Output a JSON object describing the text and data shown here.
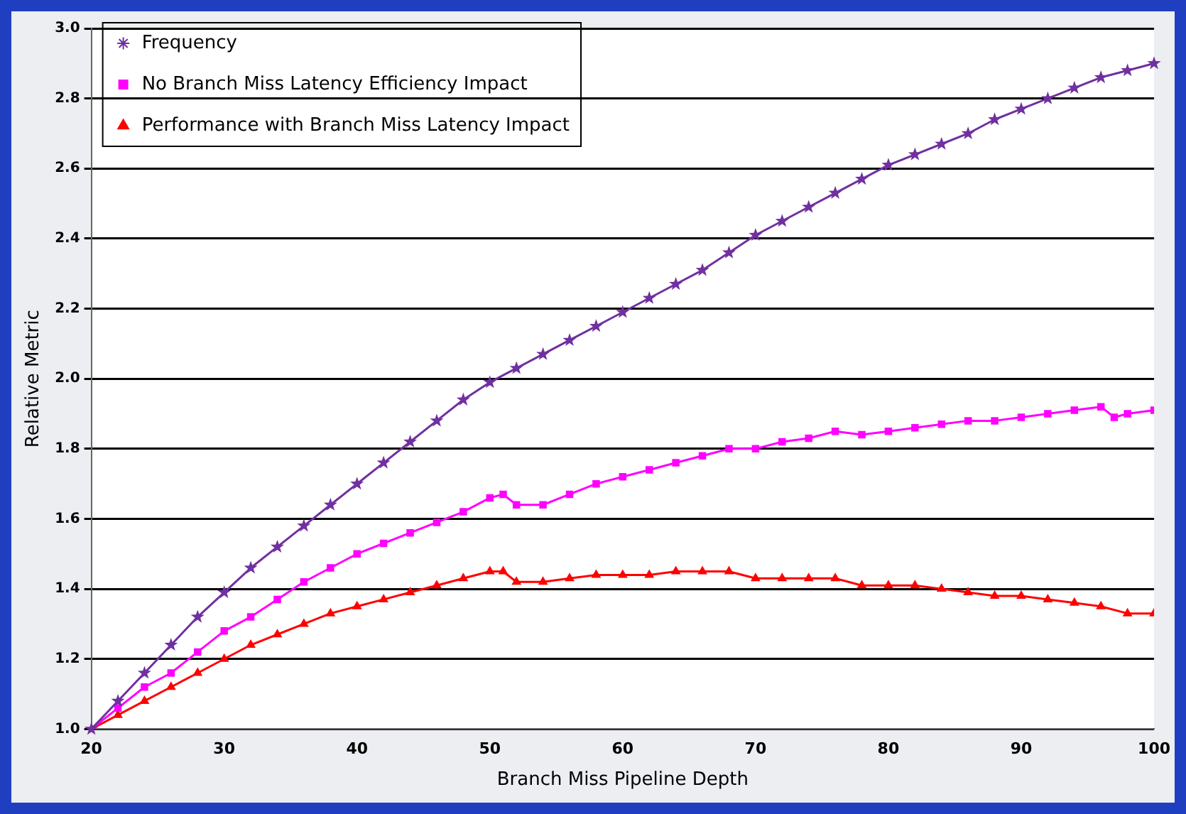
{
  "chart_data": {
    "type": "line",
    "xlabel": "Branch Miss Pipeline Depth",
    "ylabel": "Relative Metric",
    "xlim": [
      20,
      100
    ],
    "xticks": [
      20,
      30,
      40,
      50,
      60,
      70,
      80,
      90,
      100
    ],
    "ylim": [
      1,
      3
    ],
    "yticks": [
      {
        "value": 1,
        "label": "1.0"
      },
      {
        "value": 1.2,
        "label": "1.2"
      },
      {
        "value": 1.4,
        "label": "1.4"
      },
      {
        "value": 1.6,
        "label": "1.6"
      },
      {
        "value": 1.8,
        "label": "1.8"
      },
      {
        "value": 2,
        "label": "2.0"
      },
      {
        "value": 2.2,
        "label": "2.2"
      },
      {
        "value": 2.4,
        "label": "2.4"
      },
      {
        "value": 2.6,
        "label": "2.6"
      },
      {
        "value": 2.8,
        "label": "2.8"
      },
      {
        "value": 3,
        "label": "3.0"
      }
    ],
    "grid": "y",
    "legend": "top left",
    "line_style": "solid",
    "series": [
      {
        "name": "Frequency",
        "color": "#7030a0",
        "marker": "star",
        "x": [
          20,
          22,
          24,
          26,
          28,
          30,
          32,
          34,
          36,
          38,
          40,
          42,
          44,
          46,
          48,
          50,
          52,
          54,
          56,
          58,
          60,
          62,
          64,
          66,
          68,
          70,
          72,
          74,
          76,
          78,
          80,
          82,
          84,
          86,
          88,
          90,
          92,
          94,
          96,
          98,
          100
        ],
        "values": [
          1.0,
          1.08,
          1.16,
          1.24,
          1.32,
          1.39,
          1.46,
          1.52,
          1.58,
          1.64,
          1.7,
          1.76,
          1.82,
          1.88,
          1.94,
          1.99,
          2.03,
          2.07,
          2.11,
          2.15,
          2.19,
          2.23,
          2.27,
          2.31,
          2.36,
          2.41,
          2.45,
          2.49,
          2.53,
          2.57,
          2.61,
          2.64,
          2.67,
          2.7,
          2.74,
          2.77,
          2.8,
          2.83,
          2.86,
          2.88,
          2.9
        ]
      },
      {
        "name": "No Branch Miss Latency Efficiency Impact",
        "color": "#ff00ff",
        "marker": "square",
        "x": [
          20,
          22,
          24,
          26,
          28,
          30,
          32,
          34,
          36,
          38,
          40,
          42,
          44,
          46,
          48,
          50,
          51,
          52,
          54,
          56,
          58,
          60,
          62,
          64,
          66,
          68,
          70,
          72,
          74,
          76,
          78,
          80,
          82,
          84,
          86,
          88,
          90,
          92,
          94,
          96,
          97,
          98,
          100
        ],
        "values": [
          1.0,
          1.06,
          1.12,
          1.16,
          1.22,
          1.28,
          1.32,
          1.37,
          1.42,
          1.46,
          1.5,
          1.53,
          1.56,
          1.59,
          1.62,
          1.66,
          1.67,
          1.64,
          1.64,
          1.67,
          1.7,
          1.72,
          1.74,
          1.76,
          1.78,
          1.8,
          1.8,
          1.82,
          1.83,
          1.85,
          1.84,
          1.85,
          1.86,
          1.87,
          1.88,
          1.88,
          1.89,
          1.9,
          1.91,
          1.92,
          1.89,
          1.9,
          1.91
        ]
      },
      {
        "name": "Performance with Branch Miss Latency Impact",
        "color": "#ff0000",
        "marker": "triangle",
        "x": [
          20,
          22,
          24,
          26,
          28,
          30,
          32,
          34,
          36,
          38,
          40,
          42,
          44,
          46,
          48,
          50,
          51,
          52,
          54,
          56,
          58,
          60,
          62,
          64,
          66,
          68,
          70,
          72,
          74,
          76,
          78,
          80,
          82,
          84,
          86,
          88,
          90,
          92,
          94,
          96,
          98,
          100
        ],
        "values": [
          1.0,
          1.04,
          1.08,
          1.12,
          1.16,
          1.2,
          1.24,
          1.27,
          1.3,
          1.33,
          1.35,
          1.37,
          1.39,
          1.41,
          1.43,
          1.45,
          1.45,
          1.42,
          1.42,
          1.43,
          1.44,
          1.44,
          1.44,
          1.45,
          1.45,
          1.45,
          1.43,
          1.43,
          1.43,
          1.43,
          1.41,
          1.41,
          1.41,
          1.4,
          1.39,
          1.38,
          1.38,
          1.37,
          1.36,
          1.35,
          1.33,
          1.33
        ]
      }
    ]
  }
}
